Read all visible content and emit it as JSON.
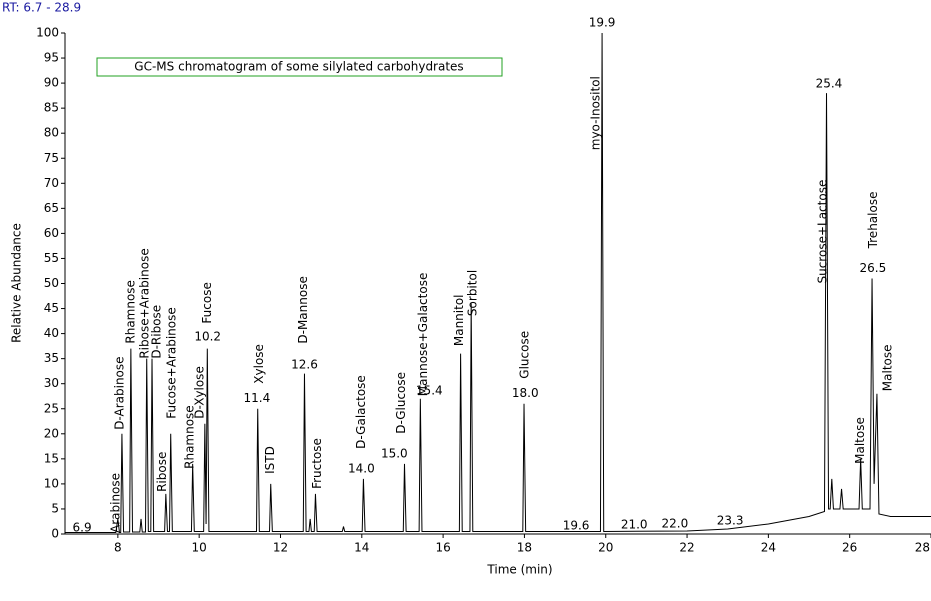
{
  "chart_data": {
    "type": "line",
    "range_label": "RT: 6.7 - 28.9",
    "title": "GC-MS chromatogram of some silylated carbohydrates",
    "x_label": "Time (min)",
    "y_label": "Relative Abundance",
    "xlim": [
      6.7,
      28
    ],
    "ylim": [
      0,
      100
    ],
    "xticks": [
      8,
      10,
      12,
      14,
      16,
      18,
      20,
      22,
      24,
      26,
      28
    ],
    "yticks": [
      0,
      5,
      10,
      15,
      20,
      25,
      30,
      35,
      40,
      45,
      50,
      55,
      60,
      65,
      70,
      75,
      80,
      85,
      90,
      95,
      100
    ],
    "grid": false,
    "series": [
      {
        "color": "#000000",
        "x": [
          6.7,
          7.95,
          8.0,
          8.04,
          8.07,
          8.1,
          8.14,
          8.29,
          8.32,
          8.36,
          8.54,
          8.57,
          8.6,
          8.68,
          8.71,
          8.75,
          8.81,
          8.84,
          8.88,
          9.15,
          9.18,
          9.22,
          9.27,
          9.3,
          9.34,
          9.81,
          9.84,
          9.88,
          10.11,
          10.14,
          10.17,
          10.2,
          10.24,
          11.41,
          11.44,
          11.48,
          11.73,
          11.76,
          11.8,
          12.56,
          12.59,
          12.63,
          12.7,
          12.73,
          12.76,
          12.83,
          12.86,
          12.9,
          13.52,
          13.55,
          13.58,
          14.01,
          14.04,
          14.08,
          15.02,
          15.05,
          15.09,
          15.41,
          15.44,
          15.48,
          16.4,
          16.43,
          16.47,
          16.66,
          16.69,
          16.73,
          17.96,
          17.99,
          18.03,
          19.87,
          19.91,
          19.95,
          22.0,
          23.0,
          24.0,
          25.0,
          25.38,
          25.43,
          25.48,
          25.52,
          25.56,
          25.6,
          25.76,
          25.8,
          25.84,
          26.23,
          26.27,
          26.31,
          26.5,
          26.55,
          26.6,
          26.67,
          26.72,
          27.0,
          27.5,
          28.0
        ],
        "values": [
          0.3,
          0.3,
          3,
          0.3,
          0.3,
          20,
          0.4,
          0.4,
          37,
          0.4,
          0.4,
          3,
          0.4,
          0.4,
          35,
          0.5,
          0.5,
          35,
          0.5,
          0.5,
          8,
          0.5,
          0.5,
          20,
          0.5,
          0.5,
          14,
          0.5,
          0.5,
          22,
          2,
          37,
          0.5,
          0.5,
          25,
          0.5,
          0.5,
          10,
          0.5,
          0.5,
          32,
          0.5,
          0.5,
          3,
          0.5,
          0.5,
          8,
          0.5,
          0.5,
          1.5,
          0.5,
          0.5,
          11,
          0.5,
          0.5,
          14,
          0.5,
          0.5,
          27,
          0.5,
          0.5,
          36,
          0.5,
          0.5,
          46,
          0.5,
          0.5,
          26,
          0.5,
          0.5,
          100,
          0.5,
          0.6,
          1.0,
          2.0,
          3.5,
          4.5,
          88,
          5,
          5,
          11,
          5,
          5,
          9,
          5,
          5,
          15,
          5,
          5,
          51,
          10,
          28,
          4,
          3.5,
          3.5,
          3.5
        ]
      }
    ],
    "peak_labels": [
      {
        "text": "Arabinose",
        "x": 7.95,
        "y": 0.2
      },
      {
        "text": "D-Arabinose",
        "x": 8.05,
        "y": 20.8
      },
      {
        "text": "Rhamnose",
        "x": 8.32,
        "y": 38
      },
      {
        "text": "Ribose+Arabinose",
        "x": 8.67,
        "y": 35
      },
      {
        "text": "D-Ribose",
        "x": 8.96,
        "y": 35
      },
      {
        "text": "Ribose",
        "x": 9.1,
        "y": 8.4
      },
      {
        "text": "Fucose+Arabinose",
        "x": 9.33,
        "y": 23
      },
      {
        "text": "Rhamnose",
        "x": 9.77,
        "y": 13
      },
      {
        "text": "D-Xylose",
        "x": 10.02,
        "y": 23
      },
      {
        "text": "Fucose",
        "x": 10.21,
        "y": 42
      },
      {
        "text": "Xylose",
        "x": 11.49,
        "y": 30
      },
      {
        "text": "ISTD",
        "x": 11.76,
        "y": 12
      },
      {
        "text": "D-Mannose",
        "x": 12.57,
        "y": 38
      },
      {
        "text": "Fructose",
        "x": 12.91,
        "y": 9
      },
      {
        "text": "D-Galactose",
        "x": 13.99,
        "y": 17
      },
      {
        "text": "D-Glucose",
        "x": 14.98,
        "y": 20
      },
      {
        "text": "Mannose+Galactose",
        "x": 15.52,
        "y": 27.5
      },
      {
        "text": "Mannitol",
        "x": 16.4,
        "y": 37.5
      },
      {
        "text": "Sorbitol",
        "x": 16.74,
        "y": 43.5
      },
      {
        "text": "Glucose",
        "x": 18.02,
        "y": 31
      },
      {
        "text": "myo-Inositol",
        "x": 19.76,
        "y": 76.6
      },
      {
        "text": "Sucrose+Lactose",
        "x": 25.34,
        "y": 50
      },
      {
        "text": "Maltose",
        "x": 26.27,
        "y": 14
      },
      {
        "text": "Trehalose",
        "x": 26.59,
        "y": 57
      },
      {
        "text": "Maltose",
        "x": 26.94,
        "y": 28.5
      }
    ],
    "rt_labels": [
      {
        "text": "6.9",
        "x": 7.12,
        "y": 1.2
      },
      {
        "text": "10.2",
        "x": 10.21,
        "y": 39.3
      },
      {
        "text": "11.4",
        "x": 11.42,
        "y": 27
      },
      {
        "text": "12.6",
        "x": 12.59,
        "y": 33.7
      },
      {
        "text": "14.0",
        "x": 13.99,
        "y": 13
      },
      {
        "text": "15.0",
        "x": 14.8,
        "y": 16
      },
      {
        "text": "15.4",
        "x": 15.66,
        "y": 28.5
      },
      {
        "text": "18.0",
        "x": 18.02,
        "y": 28
      },
      {
        "text": "19.6",
        "x": 19.27,
        "y": 1.6
      },
      {
        "text": "19.9",
        "x": 19.91,
        "y": 102
      },
      {
        "text": "21.0",
        "x": 20.7,
        "y": 1.8
      },
      {
        "text": "22.0",
        "x": 21.7,
        "y": 2
      },
      {
        "text": "23.3",
        "x": 23.06,
        "y": 2.6
      },
      {
        "text": "25.4",
        "x": 25.49,
        "y": 89.8
      },
      {
        "text": "26.5",
        "x": 26.57,
        "y": 53
      }
    ]
  }
}
